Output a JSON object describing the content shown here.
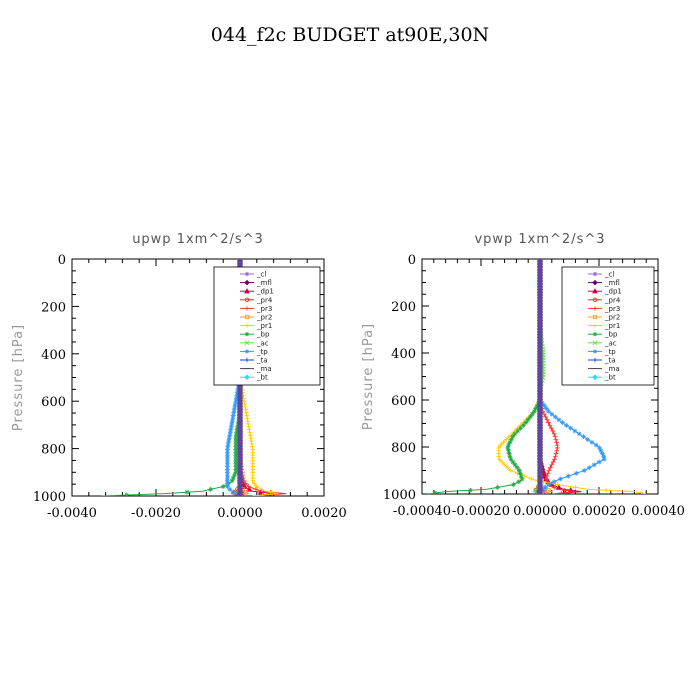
{
  "title": "044_f2c  BUDGET at90E,30N",
  "chart_data": [
    {
      "type": "line",
      "title": "upwp   1xm^2/s^3",
      "ylabel": "Pressure [hPa]",
      "xlabel": "",
      "xlim": [
        -0.004,
        0.002
      ],
      "ylim": [
        1000,
        0
      ],
      "xticks": [
        -0.004,
        -0.002,
        0.0,
        0.002
      ],
      "xtick_labels": [
        "-0.0040",
        "-0.0020",
        "0.0000",
        "0.0020"
      ],
      "yticks": [
        0,
        200,
        400,
        600,
        800,
        1000
      ],
      "ytick_labels": [
        "0",
        "200",
        "400",
        "600",
        "800",
        "1000"
      ],
      "legend_placement": "top-right",
      "pressure": [
        0,
        100,
        200,
        300,
        400,
        500,
        550,
        600,
        650,
        700,
        750,
        800,
        850,
        900,
        940,
        960,
        980,
        990,
        1000
      ],
      "series": [
        {
          "name": "_cl",
          "color": "#9966cc",
          "marker": "star",
          "values": [
            0,
            0,
            0,
            0,
            0,
            0,
            0,
            0,
            0,
            0,
            0,
            0,
            0,
            0,
            0,
            0,
            5e-05,
            0.0001,
            0
          ]
        },
        {
          "name": "_mfl",
          "color": "#660066",
          "marker": "diamond",
          "values": [
            0,
            0,
            0,
            0,
            0,
            0,
            0,
            0,
            0,
            0,
            0,
            0,
            0,
            0,
            0,
            0,
            0,
            5e-05,
            0
          ]
        },
        {
          "name": "_dp1",
          "color": "#cc0044",
          "marker": "triangle",
          "values": [
            0,
            0,
            0,
            0,
            0,
            0,
            0,
            0,
            0,
            0,
            0,
            0,
            0,
            0,
            5e-05,
            0.0001,
            0.0003,
            0.0008,
            0.0003
          ]
        },
        {
          "name": "_pr4",
          "color": "#ff2222",
          "marker": "circle",
          "values": [
            0,
            0,
            0,
            0,
            0,
            0,
            0,
            0,
            0,
            0,
            0,
            0,
            0,
            0,
            0,
            0,
            -0.0001,
            -0.0002,
            0
          ]
        },
        {
          "name": "_pr3",
          "color": "#ff3333",
          "marker": "plus",
          "values": [
            0,
            0,
            0,
            0,
            0,
            0,
            0,
            0,
            0,
            0,
            0,
            0,
            0,
            5e-05,
            0.0001,
            0.0002,
            0.0005,
            0.0011,
            0.0004
          ]
        },
        {
          "name": "_pr2",
          "color": "#ff9933",
          "marker": "square",
          "values": [
            0,
            0,
            0,
            0,
            0,
            0,
            0,
            0,
            0,
            0,
            0,
            0,
            0,
            0,
            0,
            0,
            0.0001,
            0.0002,
            0
          ]
        },
        {
          "name": "_pr1",
          "color": "#ffcc00",
          "marker": "plus",
          "values": [
            0,
            0,
            0,
            0,
            0,
            0,
            5e-05,
            0.0001,
            0.00015,
            0.0002,
            0.00025,
            0.0003,
            0.0003,
            0.0003,
            0.0003,
            0.0004,
            0.0006,
            0.0009,
            0.0003
          ]
        },
        {
          "name": "_bp",
          "color": "#22aa44",
          "marker": "star",
          "values": [
            0,
            0,
            0,
            0,
            0,
            0,
            0,
            0,
            0,
            -5e-05,
            -0.0001,
            -0.0001,
            -0.0001,
            -0.0001,
            -0.0002,
            -0.0004,
            -0.0009,
            -0.0018,
            -0.0033
          ]
        },
        {
          "name": "_ac",
          "color": "#66dd44",
          "marker": "x",
          "values": [
            0,
            0,
            0,
            0,
            0,
            0,
            0,
            0,
            0,
            0,
            0,
            0,
            0,
            0,
            0,
            0,
            -5e-05,
            -0.0001,
            0
          ]
        },
        {
          "name": "_tp",
          "color": "#3399ff",
          "marker": "star",
          "values": [
            0,
            0,
            0,
            0,
            0,
            0,
            -5e-05,
            -0.0001,
            -0.00015,
            -0.0002,
            -0.00025,
            -0.0003,
            -0.0003,
            -0.0003,
            -0.0003,
            -0.0003,
            -0.0002,
            -0.0001,
            0
          ]
        },
        {
          "name": "_ta",
          "color": "#0044cc",
          "marker": "plus",
          "values": [
            0,
            0,
            0,
            0,
            0,
            0,
            0,
            0,
            0,
            0,
            0,
            0,
            0,
            0,
            0,
            0,
            0,
            -5e-05,
            0
          ]
        },
        {
          "name": "_ma",
          "color": "#444444",
          "marker": "dash",
          "values": [
            0,
            0,
            0,
            0,
            0,
            0,
            0,
            0,
            0,
            0,
            0,
            0,
            0,
            0,
            0,
            0,
            0,
            0,
            0
          ]
        },
        {
          "name": "_bt",
          "color": "#22ddff",
          "marker": "diamond",
          "values": [
            0,
            0,
            0,
            0,
            0,
            0,
            0,
            0,
            0,
            0,
            0,
            0,
            0,
            0,
            0,
            0,
            0,
            0,
            0
          ]
        }
      ]
    },
    {
      "type": "line",
      "title": "vpwp   1xm^2/s^3",
      "ylabel": "Pressure [hPa]",
      "xlabel": "",
      "xlim": [
        -0.0004,
        0.0004
      ],
      "ylim": [
        1000,
        0
      ],
      "xticks": [
        -0.0004,
        -0.0002,
        0.0,
        0.0002,
        0.0004
      ],
      "xtick_labels": [
        "-0.00040",
        "-0.00020",
        "0.00000",
        "0.00020",
        "0.00040"
      ],
      "yticks": [
        0,
        200,
        400,
        600,
        800,
        1000
      ],
      "ytick_labels": [
        "0",
        "200",
        "400",
        "600",
        "800",
        "1000"
      ],
      "legend_placement": "top-right",
      "pressure": [
        0,
        100,
        200,
        300,
        400,
        500,
        550,
        600,
        650,
        700,
        750,
        800,
        850,
        900,
        940,
        960,
        980,
        990,
        1000
      ],
      "series": [
        {
          "name": "_cl",
          "color": "#9966cc",
          "marker": "star",
          "values": [
            0,
            0,
            0,
            0,
            0,
            0,
            0,
            0,
            0,
            0,
            0,
            0,
            0,
            0,
            0,
            0,
            1e-05,
            2e-05,
            0
          ]
        },
        {
          "name": "_mfl",
          "color": "#660066",
          "marker": "diamond",
          "values": [
            0,
            0,
            0,
            0,
            0,
            0,
            0,
            0,
            0,
            0,
            0,
            0,
            0,
            0,
            0,
            0,
            0,
            1e-05,
            0
          ]
        },
        {
          "name": "_dp1",
          "color": "#cc0044",
          "marker": "triangle",
          "values": [
            0,
            0,
            0,
            0,
            0,
            0,
            0,
            0,
            0,
            0,
            0,
            0,
            0,
            1e-05,
            2e-05,
            4e-05,
            8e-05,
            0.00014,
            5e-05
          ]
        },
        {
          "name": "_pr4",
          "color": "#ff2222",
          "marker": "circle",
          "values": [
            0,
            0,
            0,
            0,
            0,
            0,
            0,
            0,
            0,
            0,
            0,
            0,
            0,
            0,
            0,
            0,
            -1e-05,
            -2e-05,
            0
          ]
        },
        {
          "name": "_pr3",
          "color": "#ff3333",
          "marker": "plus",
          "values": [
            0,
            0,
            0,
            0,
            0,
            0,
            0,
            0,
            1e-05,
            3e-05,
            5e-05,
            6e-05,
            5e-05,
            3e-05,
            2e-05,
            3e-05,
            6e-05,
            0.00012,
            4e-05
          ]
        },
        {
          "name": "_pr2",
          "color": "#ff9933",
          "marker": "square",
          "values": [
            0,
            0,
            0,
            0,
            0,
            0,
            0,
            0,
            0,
            0,
            0,
            0,
            0,
            0,
            0,
            0,
            2e-05,
            4e-05,
            0
          ]
        },
        {
          "name": "_pr1",
          "color": "#ffcc00",
          "marker": "plus",
          "values": [
            0,
            0,
            0,
            0,
            0,
            0,
            0,
            0,
            -2e-05,
            -6e-05,
            -0.0001,
            -0.00014,
            -0.00014,
            -0.0001,
            -2e-05,
            6e-05,
            0.00016,
            0.00032,
            0.00036
          ]
        },
        {
          "name": "_bp",
          "color": "#22aa44",
          "marker": "star",
          "values": [
            0,
            0,
            0,
            0,
            0,
            0,
            0,
            0,
            -2e-05,
            -5e-05,
            -9e-05,
            -0.00011,
            -0.0001,
            -7e-05,
            -6e-05,
            -9e-05,
            -0.00018,
            -0.00032,
            -0.00038
          ]
        },
        {
          "name": "_ac",
          "color": "#66dd44",
          "marker": "x",
          "values": [
            0,
            0,
            0,
            0,
            1e-05,
            1e-05,
            0,
            0,
            0,
            0,
            0,
            0,
            0,
            0,
            0,
            0,
            -1e-05,
            -2e-05,
            0
          ]
        },
        {
          "name": "_tp",
          "color": "#3399ff",
          "marker": "star",
          "values": [
            0,
            0,
            0,
            0,
            0,
            0,
            0,
            0,
            3e-05,
            8e-05,
            0.00014,
            0.0002,
            0.00022,
            0.00015,
            6e-05,
            3e-05,
            1e-05,
            0,
            0
          ]
        },
        {
          "name": "_ta",
          "color": "#0044cc",
          "marker": "plus",
          "values": [
            0,
            0,
            0,
            0,
            0,
            0,
            0,
            0,
            0,
            0,
            0,
            0,
            0,
            0,
            0,
            0,
            0,
            -1e-05,
            0
          ]
        },
        {
          "name": "_ma",
          "color": "#444444",
          "marker": "dash",
          "values": [
            0,
            0,
            0,
            0,
            0,
            0,
            0,
            0,
            0,
            0,
            0,
            0,
            0,
            0,
            0,
            0,
            0,
            0,
            0
          ]
        },
        {
          "name": "_bt",
          "color": "#22ddff",
          "marker": "diamond",
          "values": [
            0,
            0,
            0,
            0,
            0,
            0,
            0,
            0,
            0,
            0,
            0,
            0,
            0,
            0,
            0,
            0,
            0,
            0,
            0
          ]
        }
      ]
    }
  ]
}
